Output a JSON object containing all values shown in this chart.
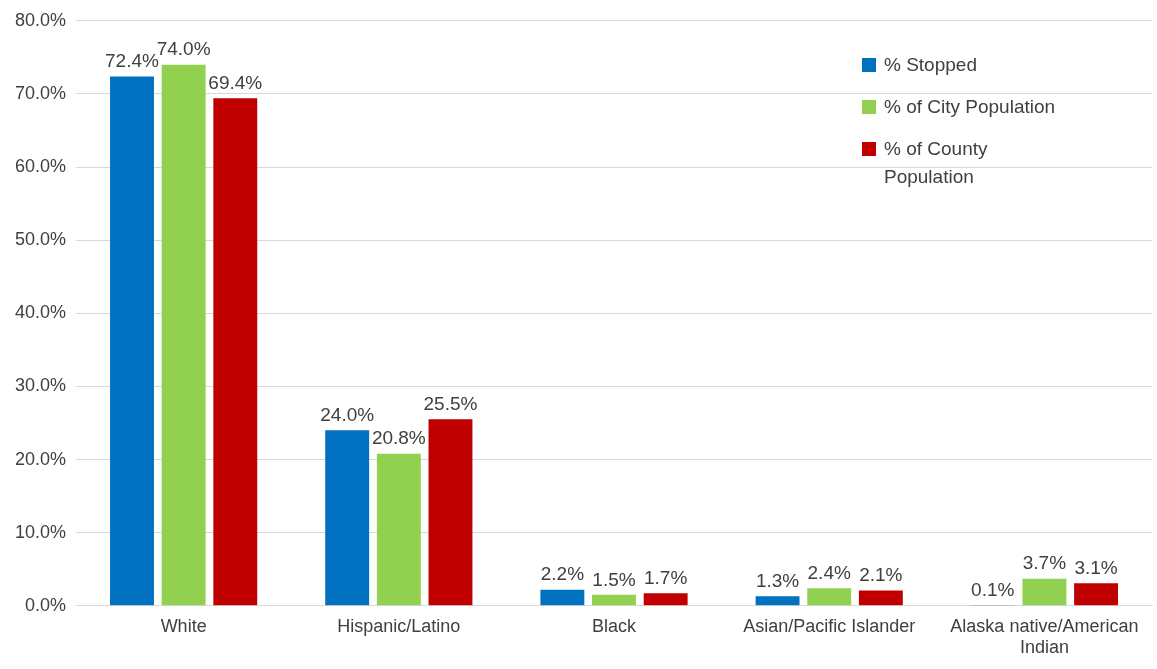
{
  "chart_data": {
    "type": "bar",
    "categories": [
      "White",
      "Hispanic/Latino",
      "Black",
      "Asian/Pacific Islander",
      "Alaska native/American Indian"
    ],
    "series": [
      {
        "name": "% Stopped",
        "color": "#0070c0",
        "values": [
          72.4,
          24.0,
          2.2,
          1.3,
          0.1
        ],
        "value_labels": [
          "72.4%",
          "24.0%",
          "2.2%",
          "1.3%",
          "0.1%"
        ]
      },
      {
        "name": "% of City Population",
        "color": "#92d050",
        "values": [
          74.0,
          20.8,
          1.5,
          2.4,
          3.7
        ],
        "value_labels": [
          "74.0%",
          "20.8%",
          "1.5%",
          "2.4%",
          "3.7%"
        ]
      },
      {
        "name": "% of County Population",
        "color": "#c00000",
        "values": [
          69.4,
          25.5,
          1.7,
          2.1,
          3.1
        ],
        "value_labels": [
          "69.4%",
          "25.5%",
          "1.7%",
          "2.1%",
          "3.1%"
        ]
      }
    ],
    "ylim": [
      0,
      80
    ],
    "yticks": [
      {
        "value": 0,
        "label": "0.0%"
      },
      {
        "value": 10,
        "label": "10.0%"
      },
      {
        "value": 20,
        "label": "20.0%"
      },
      {
        "value": 30,
        "label": "30.0%"
      },
      {
        "value": 40,
        "label": "40.0%"
      },
      {
        "value": 50,
        "label": "50.0%"
      },
      {
        "value": 60,
        "label": "60.0%"
      },
      {
        "value": 70,
        "label": "70.0%"
      },
      {
        "value": 80,
        "label": "80.0%"
      }
    ],
    "grid": "y",
    "legend": "top right"
  }
}
